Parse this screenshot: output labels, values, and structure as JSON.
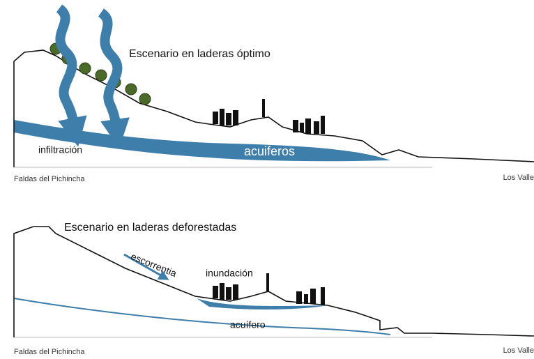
{
  "panels": [
    {
      "title": "Escenario en laderas óptimo",
      "labels": [
        "infiltración",
        "acuiferos"
      ],
      "left": "Faldas del Pichincha",
      "right": "Los Valle"
    },
    {
      "title": "Escenario en laderas deforestadas",
      "labels": [
        "escorrentia",
        "inundación",
        "acuífero"
      ],
      "left": "Faldas del Pichincha",
      "right": "Los Valle"
    }
  ]
}
